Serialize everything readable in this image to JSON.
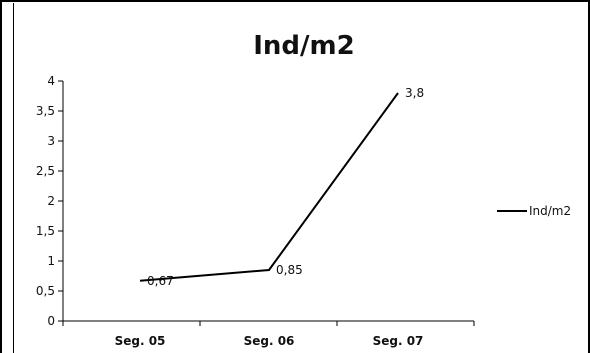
{
  "chart_data": {
    "type": "line",
    "title": "Ind/m2",
    "categories": [
      "Seg. 05",
      "Seg. 06",
      "Seg. 07"
    ],
    "series": [
      {
        "name": "Ind/m2",
        "values": [
          0.67,
          0.85,
          3.8
        ],
        "labels": [
          "0,67",
          "0,85",
          "3,8"
        ],
        "color": "#000000"
      }
    ],
    "ylim": [
      0,
      4
    ],
    "yticks": [
      0,
      0.5,
      1,
      1.5,
      2,
      2.5,
      3,
      3.5,
      4
    ],
    "ytick_labels": [
      "0",
      "0,5",
      "1",
      "1,5",
      "2",
      "2,5",
      "3",
      "3,5",
      "4"
    ],
    "grid": false,
    "legend": "right"
  }
}
